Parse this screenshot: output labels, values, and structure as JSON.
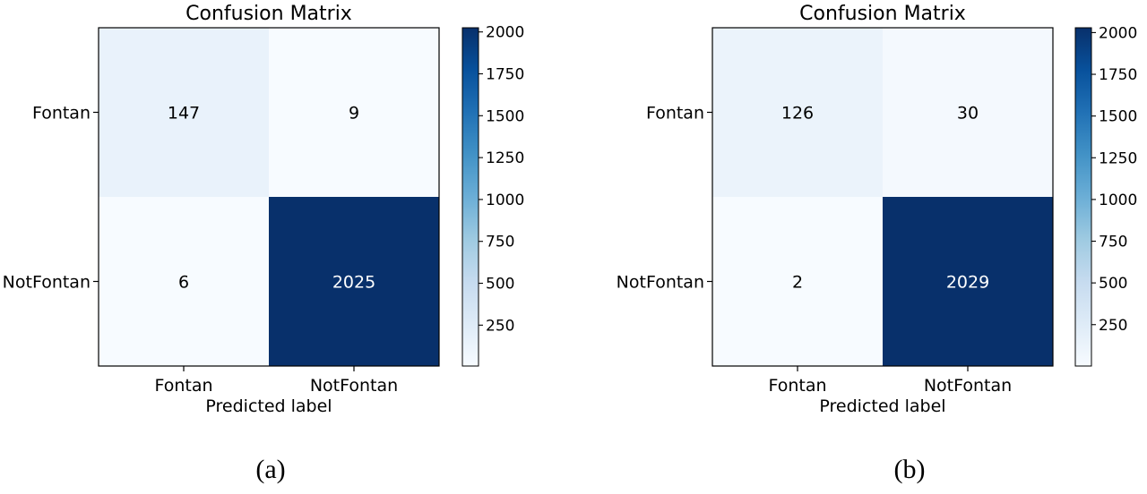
{
  "chart_data": [
    {
      "type": "heatmap",
      "title": "Confusion Matrix",
      "xlabel": "Predicted label",
      "ylabel": "",
      "x_categories": [
        "Fontan",
        "NotFontan"
      ],
      "y_categories": [
        "Fontan",
        "NotFontan"
      ],
      "values": [
        [
          147,
          9
        ],
        [
          6,
          2025
        ]
      ],
      "colormap": "Blues",
      "colorbar": {
        "min": 6,
        "max": 2025,
        "ticks": [
          250,
          500,
          750,
          1000,
          1250,
          1500,
          1750,
          2000
        ]
      },
      "caption": "(a)"
    },
    {
      "type": "heatmap",
      "title": "Confusion Matrix",
      "xlabel": "Predicted label",
      "ylabel": "",
      "x_categories": [
        "Fontan",
        "NotFontan"
      ],
      "y_categories": [
        "Fontan",
        "NotFontan"
      ],
      "values": [
        [
          126,
          30
        ],
        [
          2,
          2029
        ]
      ],
      "colormap": "Blues",
      "colorbar": {
        "min": 2,
        "max": 2029,
        "ticks": [
          250,
          500,
          750,
          1000,
          1250,
          1500,
          1750,
          2000
        ]
      },
      "caption": "(b)"
    }
  ],
  "colors": {
    "low": "#f7fbff",
    "mid": "#6baed6",
    "high": "#08306b",
    "text_dark": "#000000",
    "text_light": "#ffffff"
  }
}
